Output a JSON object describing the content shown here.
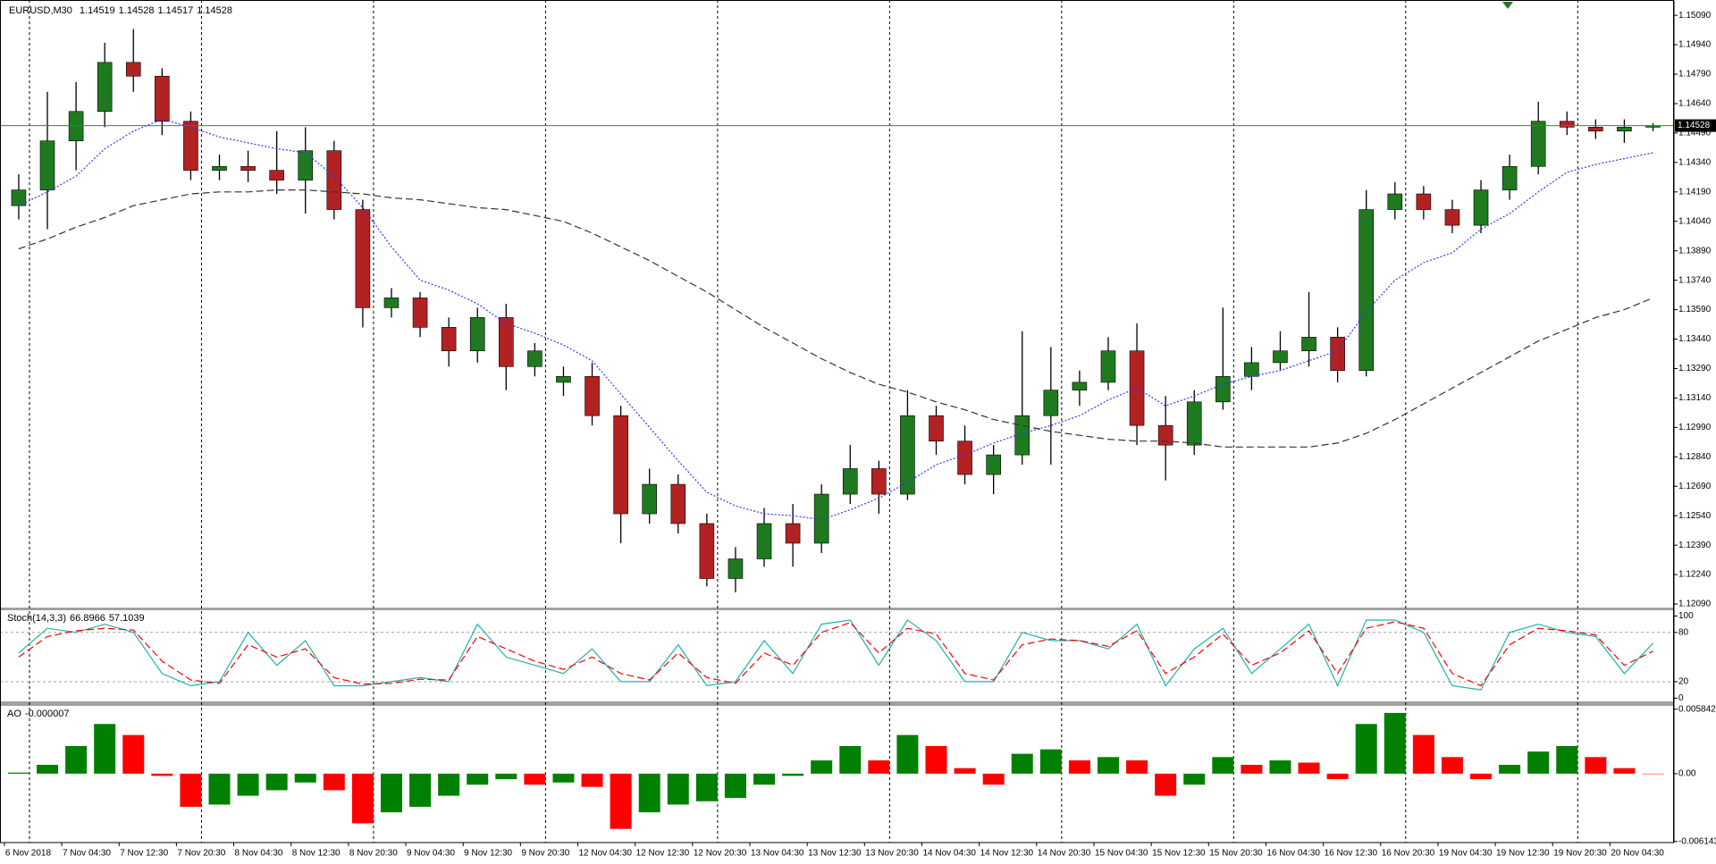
{
  "chart_data": [
    {
      "type": "candlestick",
      "symbol": "EURUSD,M30",
      "quote": [
        1.14519,
        1.14528,
        1.14517,
        1.14528
      ],
      "categories": [
        "6 Nov 2018",
        null,
        "7 Nov 04:30",
        null,
        "7 Nov 12:30",
        null,
        "7 Nov 20:30",
        null,
        "8 Nov 04:30",
        null,
        "8 Nov 12:30",
        null,
        "8 Nov 20:30",
        null,
        "9 Nov 04:30",
        null,
        "9 Nov 12:30",
        null,
        "9 Nov 20:30",
        null,
        "12 Nov 04:30",
        null,
        "12 Nov 12:30",
        null,
        "12 Nov 20:30",
        null,
        "13 Nov 04:30",
        null,
        "13 Nov 12:30",
        null,
        "13 Nov 20:30",
        null,
        "14 Nov 04:30",
        null,
        "14 Nov 12:30",
        null,
        "14 Nov 20:30",
        null,
        "15 Nov 04:30",
        null,
        "15 Nov 12:30",
        null,
        "15 Nov 20:30",
        null,
        "16 Nov 04:30",
        null,
        "16 Nov 12:30",
        null,
        "16 Nov 20:30",
        null,
        "19 Nov 04:30",
        null,
        "19 Nov 12:30",
        null,
        "19 Nov 20:30",
        null,
        "20 Nov 04:30",
        null
      ],
      "open": [
        1.1412,
        1.142,
        1.1445,
        1.146,
        1.1485,
        1.1478,
        1.1455,
        1.143,
        1.1432,
        1.143,
        1.1425,
        1.144,
        1.141,
        1.136,
        1.1365,
        1.135,
        1.1338,
        1.1355,
        1.133,
        1.1322,
        1.1325,
        1.1305,
        1.1255,
        1.127,
        1.125,
        1.1222,
        1.1232,
        1.125,
        1.124,
        1.1265,
        1.1278,
        1.1265,
        1.1305,
        1.1292,
        1.1275,
        1.1285,
        1.1305,
        1.1318,
        1.1322,
        1.1338,
        1.13,
        1.129,
        1.1312,
        1.1325,
        1.1332,
        1.1338,
        1.1345,
        1.1328,
        1.141,
        1.1418,
        1.141,
        1.1402,
        1.142,
        1.1432,
        1.1455,
        1.1452,
        1.145,
        1.1452
      ],
      "high": [
        1.1428,
        1.147,
        1.1475,
        1.1495,
        1.1502,
        1.1482,
        1.146,
        1.1438,
        1.144,
        1.145,
        1.1452,
        1.1445,
        1.1415,
        1.137,
        1.1368,
        1.1355,
        1.136,
        1.1362,
        1.1342,
        1.133,
        1.1332,
        1.131,
        1.1278,
        1.1275,
        1.1255,
        1.1238,
        1.1258,
        1.126,
        1.127,
        1.129,
        1.1282,
        1.1318,
        1.131,
        1.13,
        1.129,
        1.1348,
        1.134,
        1.1328,
        1.1345,
        1.1352,
        1.1315,
        1.1318,
        1.136,
        1.134,
        1.1348,
        1.1368,
        1.135,
        1.142,
        1.1424,
        1.1422,
        1.1415,
        1.1425,
        1.1438,
        1.1465,
        1.146,
        1.1456,
        1.1456,
        1.1454
      ],
      "low": [
        1.1405,
        1.14,
        1.143,
        1.1452,
        1.147,
        1.1448,
        1.1425,
        1.1425,
        1.1424,
        1.1418,
        1.1408,
        1.1405,
        1.135,
        1.1355,
        1.1345,
        1.133,
        1.1332,
        1.1318,
        1.1325,
        1.1315,
        1.13,
        1.124,
        1.125,
        1.1245,
        1.1218,
        1.1215,
        1.1228,
        1.1228,
        1.1235,
        1.126,
        1.1255,
        1.1262,
        1.1285,
        1.127,
        1.1265,
        1.128,
        1.128,
        1.131,
        1.1318,
        1.129,
        1.1272,
        1.1285,
        1.1308,
        1.1318,
        1.1328,
        1.133,
        1.1322,
        1.1325,
        1.1405,
        1.1405,
        1.1398,
        1.1398,
        1.1415,
        1.1428,
        1.1448,
        1.1446,
        1.1444,
        1.145
      ],
      "close": [
        1.142,
        1.1445,
        1.146,
        1.1485,
        1.1478,
        1.1455,
        1.143,
        1.1432,
        1.143,
        1.1425,
        1.144,
        1.141,
        1.136,
        1.1365,
        1.135,
        1.1338,
        1.1355,
        1.133,
        1.1338,
        1.1325,
        1.1305,
        1.1255,
        1.127,
        1.125,
        1.1222,
        1.1232,
        1.125,
        1.124,
        1.1265,
        1.1278,
        1.1265,
        1.1305,
        1.1292,
        1.1275,
        1.1285,
        1.1305,
        1.1318,
        1.1322,
        1.1338,
        1.13,
        1.129,
        1.1312,
        1.1325,
        1.1332,
        1.1338,
        1.1345,
        1.1328,
        1.141,
        1.1418,
        1.141,
        1.1402,
        1.142,
        1.1432,
        1.1455,
        1.1452,
        1.145,
        1.1452,
        1.14528
      ],
      "up_color": "#1f7a1f",
      "down_color": "#b22222",
      "wick_color": "#000000",
      "overlays": [
        {
          "color": "#3333ff",
          "dash": "dotted",
          "values": [
            1.1412,
            1.1419,
            1.1427,
            1.1441,
            1.145,
            1.1456,
            1.1452,
            1.1447,
            1.1444,
            1.1441,
            1.1439,
            1.1427,
            1.1411,
            1.1391,
            1.1374,
            1.1369,
            1.1362,
            1.1352,
            1.1347,
            1.1341,
            1.1333,
            1.1316,
            1.1299,
            1.1282,
            1.1266,
            1.1259,
            1.1255,
            1.1254,
            1.1252,
            1.1257,
            1.1263,
            1.1271,
            1.128,
            1.1285,
            1.1291,
            1.1296,
            1.13,
            1.1305,
            1.1313,
            1.1319,
            1.131,
            1.1315,
            1.1321,
            1.1325,
            1.1328,
            1.1333,
            1.1338,
            1.1358,
            1.1374,
            1.1383,
            1.1388,
            1.14,
            1.1408,
            1.1419,
            1.1429,
            1.1433,
            1.1436,
            1.1439
          ]
        },
        {
          "color": "#333333",
          "dash": "dashed",
          "values": [
            1.139,
            1.1395,
            1.1401,
            1.1406,
            1.1412,
            1.1415,
            1.1418,
            1.1419,
            1.1419,
            1.142,
            1.142,
            1.1419,
            1.1418,
            1.1416,
            1.1415,
            1.1413,
            1.1411,
            1.141,
            1.1407,
            1.1404,
            1.1398,
            1.1391,
            1.1384,
            1.1376,
            1.1368,
            1.1359,
            1.135,
            1.1342,
            1.1334,
            1.1327,
            1.1321,
            1.1317,
            1.1312,
            1.1308,
            1.1303,
            1.13,
            1.1297,
            1.1295,
            1.1293,
            1.1292,
            1.1292,
            1.1291,
            1.1289,
            1.1289,
            1.1289,
            1.1289,
            1.1291,
            1.1296,
            1.1303,
            1.1311,
            1.1319,
            1.1327,
            1.1335,
            1.1343,
            1.1349,
            1.1355,
            1.1359,
            1.1365
          ]
        }
      ],
      "price_line_color": "#2e8b2e",
      "ylim": [
        1.12072,
        1.15168
      ],
      "yticks": [
        {
          "value": 1.1509,
          "label": "1.15090"
        },
        {
          "value": 1.1494,
          "label": "1.14940"
        },
        {
          "value": 1.1479,
          "label": "1.14790"
        },
        {
          "value": 1.1464,
          "label": "1.14640"
        },
        {
          "value": 1.1449,
          "label": "1.14490"
        },
        {
          "value": 1.1434,
          "label": "1.14340"
        },
        {
          "value": 1.1419,
          "label": "1.14190"
        },
        {
          "value": 1.1404,
          "label": "1.14040"
        },
        {
          "value": 1.1389,
          "label": "1.13890"
        },
        {
          "value": 1.1374,
          "label": "1.13740"
        },
        {
          "value": 1.1359,
          "label": "1.13590"
        },
        {
          "value": 1.1344,
          "label": "1.13440"
        },
        {
          "value": 1.1329,
          "label": "1.13290"
        },
        {
          "value": 1.1314,
          "label": "1.13140"
        },
        {
          "value": 1.1299,
          "label": "1.12990"
        },
        {
          "value": 1.1284,
          "label": "1.12840"
        },
        {
          "value": 1.1269,
          "label": "1.12690"
        },
        {
          "value": 1.1254,
          "label": "1.12540"
        },
        {
          "value": 1.1239,
          "label": "1.12390"
        },
        {
          "value": 1.1224,
          "label": "1.12240"
        },
        {
          "value": 1.1209,
          "label": "1.12090"
        }
      ]
    },
    {
      "type": "line",
      "title": "Stoch(14,3,3)",
      "series": [
        {
          "color": "#20b2aa",
          "dash": "solid",
          "values": [
            55,
            85,
            80,
            90,
            80,
            30,
            15,
            20,
            80,
            40,
            70,
            15,
            15,
            20,
            25,
            20,
            90,
            50,
            40,
            30,
            60,
            20,
            20,
            65,
            15,
            20,
            70,
            30,
            90,
            95,
            40,
            95,
            70,
            20,
            20,
            80,
            70,
            70,
            60,
            90,
            15,
            60,
            85,
            30,
            60,
            90,
            15,
            95,
            95,
            80,
            15,
            10,
            80,
            90,
            80,
            75,
            30,
            66.8966
          ]
        },
        {
          "color": "#ff0000",
          "dash": "dashed",
          "values": [
            50,
            75,
            82,
            85,
            83,
            45,
            22,
            18,
            65,
            50,
            60,
            25,
            17,
            18,
            23,
            22,
            75,
            60,
            45,
            35,
            50,
            30,
            22,
            55,
            25,
            18,
            55,
            40,
            80,
            92,
            55,
            85,
            78,
            30,
            22,
            65,
            72,
            70,
            63,
            82,
            30,
            50,
            78,
            40,
            55,
            82,
            30,
            85,
            93,
            85,
            30,
            15,
            65,
            85,
            82,
            77,
            40,
            57.1039
          ]
        }
      ],
      "levels": [
        80,
        20
      ],
      "ylim": [
        -4,
        107
      ],
      "yticks": [
        100,
        80,
        20,
        0
      ]
    },
    {
      "type": "bar",
      "title": "AO",
      "values": [
        0.0001,
        0.0008,
        0.0025,
        0.0045,
        0.0035,
        -0.0002,
        -0.003,
        -0.0028,
        -0.002,
        -0.0015,
        -0.0008,
        -0.0015,
        -0.0045,
        -0.0035,
        -0.003,
        -0.002,
        -0.001,
        -0.0005,
        -0.001,
        -0.0008,
        -0.0012,
        -0.005,
        -0.0035,
        -0.0028,
        -0.0025,
        -0.0022,
        -0.001,
        -0.0002,
        0.0012,
        0.0025,
        0.0012,
        0.0035,
        0.0025,
        0.0005,
        -0.001,
        0.0018,
        0.0022,
        0.0012,
        0.0015,
        0.0012,
        -0.002,
        -0.001,
        0.0015,
        0.0008,
        0.0012,
        0.001,
        -0.0005,
        0.0045,
        0.0055,
        0.0035,
        0.0015,
        -0.0005,
        0.0008,
        0.002,
        0.0025,
        0.0015,
        0.0005,
        -7e-06
      ],
      "up_color": "#008000",
      "down_color": "#ff0000",
      "ylim": [
        -0.00624,
        0.00614
      ],
      "yticks": [
        0.005842,
        {
          "value": 0,
          "label": "0.00"
        },
        -0.006143
      ]
    }
  ]
}
